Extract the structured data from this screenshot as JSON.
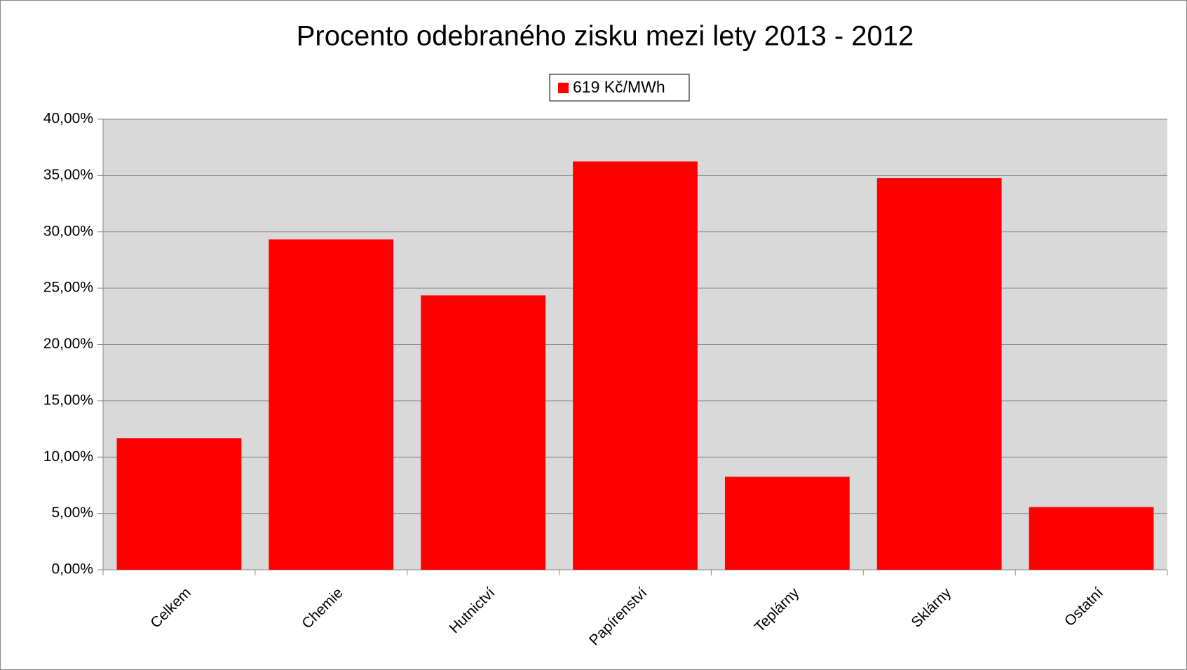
{
  "chart_data": {
    "type": "bar",
    "title": "Procento odebraného zisku mezi lety 2013 - 2012",
    "categories": [
      "Celkem",
      "Chemie",
      "Hutnictví",
      "Papírenství",
      "Teplárny",
      "Sklárny",
      "Ostatní"
    ],
    "series": [
      {
        "name": "619 Kč/MWh",
        "color": "#ff0000",
        "values": [
          11.68,
          29.33,
          24.36,
          36.24,
          8.26,
          34.77,
          5.57
        ]
      }
    ],
    "ylim": [
      0,
      40
    ],
    "yticks": [
      {
        "value": 0,
        "label": "0,00%"
      },
      {
        "value": 5,
        "label": "5,00%"
      },
      {
        "value": 10,
        "label": "10,00%"
      },
      {
        "value": 15,
        "label": "15,00%"
      },
      {
        "value": 20,
        "label": "20,00%"
      },
      {
        "value": 25,
        "label": "25,00%"
      },
      {
        "value": 30,
        "label": "30,00%"
      },
      {
        "value": 35,
        "label": "35,00%"
      },
      {
        "value": 40,
        "label": "40,00%"
      }
    ],
    "grid": true,
    "legend": "top"
  }
}
